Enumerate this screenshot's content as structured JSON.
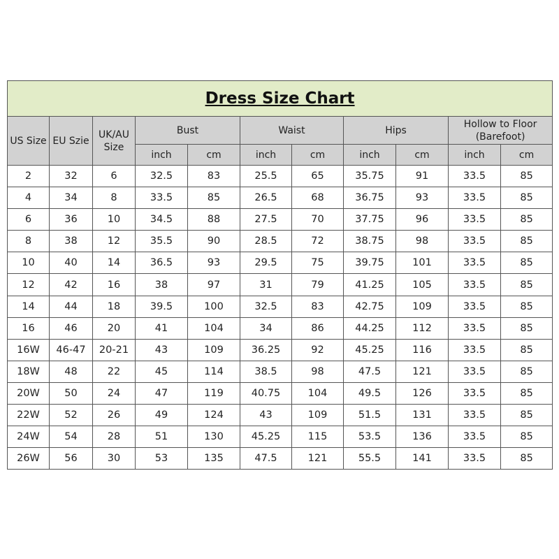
{
  "title": "Dress Size Chart",
  "columns": {
    "us": "US Size",
    "eu": "EU Szie",
    "uk": "UK/AU Size",
    "groups": [
      "Bust",
      "Waist",
      "Hips",
      "Hollow to Floor (Barefoot)"
    ],
    "unit_inch": "inch",
    "unit_cm": "cm"
  },
  "rows": [
    [
      "2",
      "32",
      "6",
      "32.5",
      "83",
      "25.5",
      "65",
      "35.75",
      "91",
      "33.5",
      "85"
    ],
    [
      "4",
      "34",
      "8",
      "33.5",
      "85",
      "26.5",
      "68",
      "36.75",
      "93",
      "33.5",
      "85"
    ],
    [
      "6",
      "36",
      "10",
      "34.5",
      "88",
      "27.5",
      "70",
      "37.75",
      "96",
      "33.5",
      "85"
    ],
    [
      "8",
      "38",
      "12",
      "35.5",
      "90",
      "28.5",
      "72",
      "38.75",
      "98",
      "33.5",
      "85"
    ],
    [
      "10",
      "40",
      "14",
      "36.5",
      "93",
      "29.5",
      "75",
      "39.75",
      "101",
      "33.5",
      "85"
    ],
    [
      "12",
      "42",
      "16",
      "38",
      "97",
      "31",
      "79",
      "41.25",
      "105",
      "33.5",
      "85"
    ],
    [
      "14",
      "44",
      "18",
      "39.5",
      "100",
      "32.5",
      "83",
      "42.75",
      "109",
      "33.5",
      "85"
    ],
    [
      "16",
      "46",
      "20",
      "41",
      "104",
      "34",
      "86",
      "44.25",
      "112",
      "33.5",
      "85"
    ],
    [
      "16W",
      "46-47",
      "20-21",
      "43",
      "109",
      "36.25",
      "92",
      "45.25",
      "116",
      "33.5",
      "85"
    ],
    [
      "18W",
      "48",
      "22",
      "45",
      "114",
      "38.5",
      "98",
      "47.5",
      "121",
      "33.5",
      "85"
    ],
    [
      "20W",
      "50",
      "24",
      "47",
      "119",
      "40.75",
      "104",
      "49.5",
      "126",
      "33.5",
      "85"
    ],
    [
      "22W",
      "52",
      "26",
      "49",
      "124",
      "43",
      "109",
      "51.5",
      "131",
      "33.5",
      "85"
    ],
    [
      "24W",
      "54",
      "28",
      "51",
      "130",
      "45.25",
      "115",
      "53.5",
      "136",
      "33.5",
      "85"
    ],
    [
      "26W",
      "56",
      "30",
      "53",
      "135",
      "47.5",
      "121",
      "55.5",
      "141",
      "33.5",
      "85"
    ]
  ],
  "colors": {
    "title_bg": "#e2ecc8",
    "header_bg": "#d2d2d2",
    "border": "#555555"
  }
}
